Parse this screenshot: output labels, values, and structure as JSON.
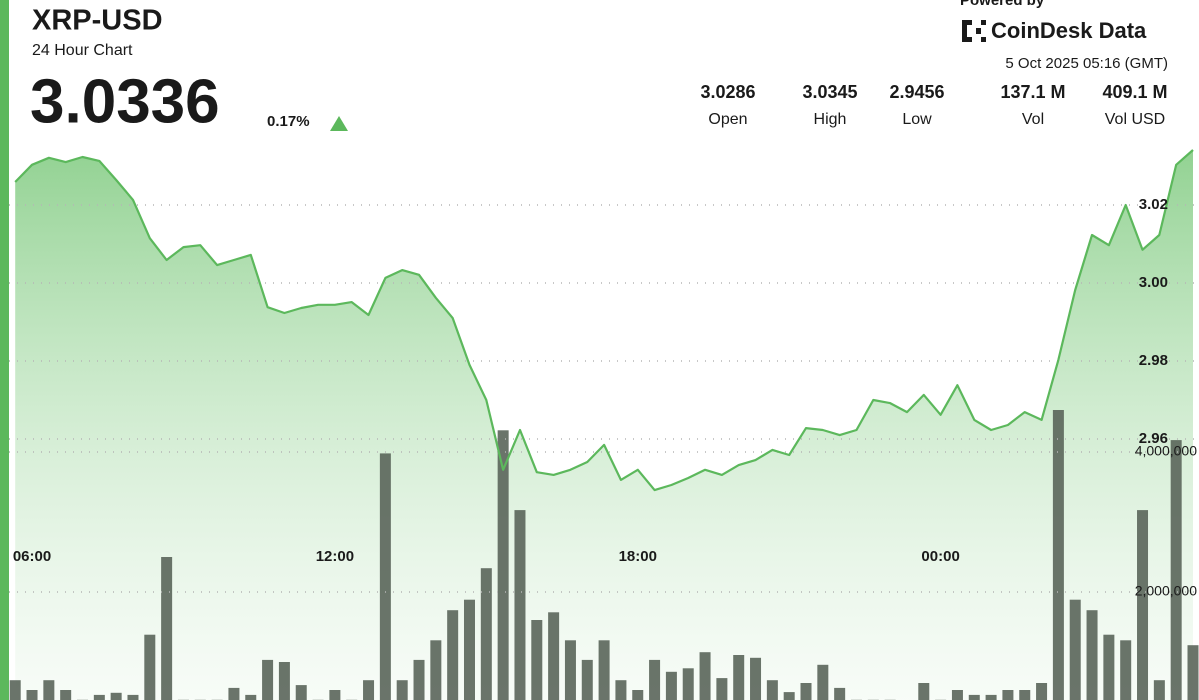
{
  "header": {
    "title": "XRP-USD",
    "subtitle": "24 Hour Chart",
    "price": "3.0336",
    "change": "0.17%",
    "powered_by": "Powered by",
    "brand": "CoinDesk Data",
    "timestamp": "5 Oct 2025 05:16 (GMT)",
    "stats": [
      {
        "value": "3.0286",
        "label": "Open"
      },
      {
        "value": "3.0345",
        "label": "High"
      },
      {
        "value": "2.9456",
        "label": "Low"
      },
      {
        "value": "137.1 M",
        "label": "Vol"
      },
      {
        "value": "409.1 M",
        "label": "Vol USD"
      }
    ]
  },
  "chart_data": {
    "type": "line",
    "categories": [
      null,
      "06:00",
      null,
      null,
      null,
      null,
      null,
      null,
      null,
      null,
      null,
      null,
      null,
      null,
      null,
      null,
      null,
      null,
      null,
      "12:00",
      null,
      null,
      null,
      null,
      null,
      null,
      null,
      null,
      null,
      null,
      null,
      null,
      null,
      null,
      null,
      null,
      null,
      "18:00",
      null,
      null,
      null,
      null,
      null,
      null,
      null,
      null,
      null,
      null,
      null,
      null,
      null,
      null,
      null,
      null,
      null,
      "00:00",
      null,
      null,
      null,
      null,
      null,
      null,
      null,
      null,
      null,
      null,
      null,
      null,
      null,
      null,
      null
    ],
    "series": [
      {
        "color": "#5cb85c",
        "values": [
          3.0259,
          3.0303,
          3.0321,
          3.031,
          3.0323,
          3.0313,
          3.0264,
          3.0213,
          3.0115,
          3.0059,
          3.0092,
          3.0097,
          3.0046,
          3.0059,
          3.0072,
          2.9938,
          2.9923,
          2.9936,
          2.9944,
          2.9944,
          2.9951,
          2.9918,
          3.0013,
          3.0033,
          3.0021,
          2.9962,
          2.991,
          2.979,
          2.97,
          2.9521,
          2.9623,
          2.9515,
          2.9508,
          2.9521,
          2.9541,
          2.9585,
          2.9495,
          2.9521,
          2.9469,
          2.9482,
          2.95,
          2.9521,
          2.9508,
          2.9533,
          2.9546,
          2.9572,
          2.9559,
          2.9628,
          2.9623,
          2.961,
          2.9623,
          2.97,
          2.9692,
          2.9669,
          2.9713,
          2.9662,
          2.9738,
          2.9649,
          2.9623,
          2.9636,
          2.9669,
          2.9649,
          2.9803,
          2.9982,
          3.0123,
          3.0097,
          3.02,
          3.0085,
          3.0123,
          3.0303,
          3.0341
        ]
      },
      {
        "type": "bar",
        "axis": "y2",
        "color": "#5a655a",
        "values": [
          740000,
          600000,
          740000,
          600000,
          460000,
          530000,
          560000,
          530000,
          1390000,
          2500000,
          460000,
          460000,
          460000,
          630000,
          530000,
          1030000,
          1000000,
          670000,
          460000,
          600000,
          460000,
          740000,
          3980000,
          740000,
          1030000,
          1310000,
          1740000,
          1890000,
          2340000,
          4310000,
          3170000,
          1600000,
          1710000,
          1310000,
          1030000,
          1310000,
          740000,
          600000,
          1030000,
          860000,
          910000,
          1140000,
          770000,
          1100000,
          1060000,
          740000,
          570000,
          700000,
          960000,
          630000,
          460000,
          460000,
          460000,
          390000,
          700000,
          460000,
          600000,
          530000,
          530000,
          600000,
          600000,
          700000,
          4600000,
          1890000,
          1740000,
          1390000,
          1310000,
          3170000,
          740000,
          4170000,
          1240000
        ]
      }
    ],
    "ylim": [
      2.9,
      3.04
    ],
    "yticks": [
      2.96,
      2.98,
      {
        "value": 3,
        "label": "3.00"
      },
      3.02
    ],
    "y2lim": [
      0,
      8000000
    ],
    "y2ticks": [
      {
        "value": 2000000,
        "label": "2,000,000"
      },
      {
        "value": 4000000,
        "label": "4,000,000"
      }
    ],
    "grid": true
  }
}
